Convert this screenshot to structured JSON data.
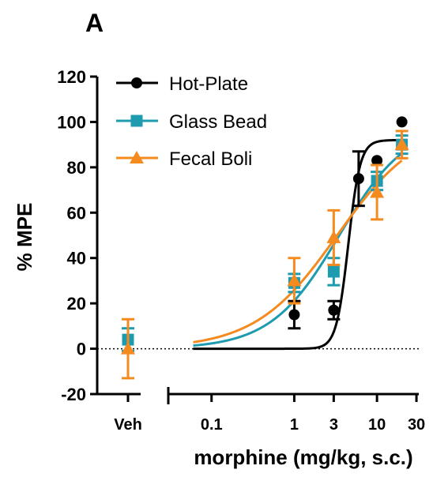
{
  "chart_data": {
    "type": "scatter",
    "panel_label": "A",
    "xlabel": "morphine (mg/kg, s.c.)",
    "ylabel": "% MPE",
    "xscale": "log",
    "xlim": [
      0.03,
      32
    ],
    "ylim": [
      -20,
      120
    ],
    "y_ticks": [
      -20,
      0,
      20,
      40,
      60,
      80,
      100,
      120
    ],
    "x_ticks": [
      {
        "value": 0.1,
        "label": "0.1"
      },
      {
        "value": 1,
        "label": "1"
      },
      {
        "value": 3,
        "label": "3"
      },
      {
        "value": 10,
        "label": "10"
      },
      {
        "value": 30,
        "label": "30"
      }
    ],
    "vehicle_label": "Veh",
    "reference_line": {
      "y": 0,
      "style": "dotted"
    },
    "legend_position": "top-left",
    "series": [
      {
        "name": "Hot-Plate",
        "color": "#000000",
        "marker": "circle",
        "vehicle": null,
        "points": [
          {
            "x": 1,
            "y": 15,
            "err": 6
          },
          {
            "x": 3,
            "y": 17,
            "err": 4
          },
          {
            "x": 6,
            "y": 75,
            "err": 12
          },
          {
            "x": 10,
            "y": 83,
            "err": 0
          },
          {
            "x": 20,
            "y": 100,
            "err": 0
          }
        ],
        "fit": {
          "bottom": 0,
          "top": 92,
          "ec50": 4.5,
          "hill": 6
        }
      },
      {
        "name": "Glass Bead",
        "color": "#1f9bb0",
        "marker": "square",
        "vehicle": {
          "y": 4,
          "err": 5
        },
        "points": [
          {
            "x": 1,
            "y": 29,
            "err": 4
          },
          {
            "x": 3,
            "y": 34,
            "err": 6
          },
          {
            "x": 10,
            "y": 74,
            "err": 4
          },
          {
            "x": 20,
            "y": 90,
            "err": 4
          }
        ],
        "fit": {
          "bottom": 0,
          "top": 100,
          "ec50": 3.5,
          "hill": 1.05
        }
      },
      {
        "name": "Fecal Boli",
        "color": "#f58a1f",
        "marker": "triangle",
        "vehicle": {
          "y": 0,
          "err": 13
        },
        "points": [
          {
            "x": 1,
            "y": 30,
            "err": 10
          },
          {
            "x": 3,
            "y": 49,
            "err": 12
          },
          {
            "x": 10,
            "y": 69,
            "err": 12
          },
          {
            "x": 20,
            "y": 90,
            "err": 6
          }
        ],
        "fit": {
          "bottom": 0,
          "top": 100,
          "ec50": 3.3,
          "hill": 0.88
        }
      }
    ]
  }
}
